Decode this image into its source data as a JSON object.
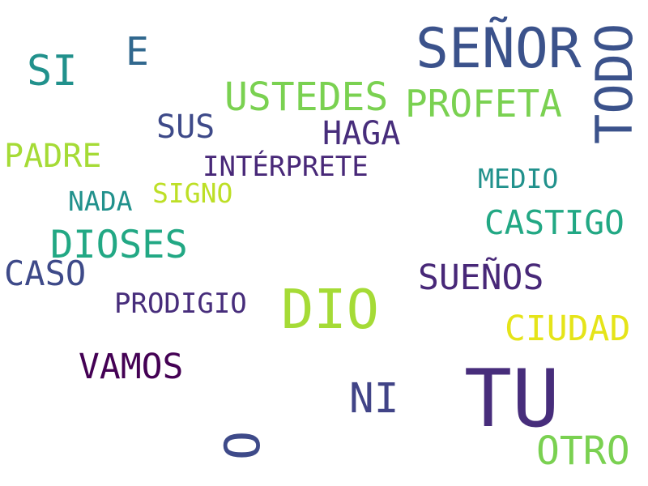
{
  "words": [
    {
      "text": "SEÑOR",
      "color": "#3b528b"
    },
    {
      "text": "TODO",
      "color": "#3b528b"
    },
    {
      "text": "E",
      "color": "#31688e"
    },
    {
      "text": "SI",
      "color": "#21918c"
    },
    {
      "text": "USTEDES",
      "color": "#7ad151"
    },
    {
      "text": "PROFETA",
      "color": "#7ad151"
    },
    {
      "text": "SUS",
      "color": "#3e4a89"
    },
    {
      "text": "HAGA",
      "color": "#472d7b"
    },
    {
      "text": "PADRE",
      "color": "#a5db36"
    },
    {
      "text": "INTÉRPRETE",
      "color": "#482878"
    },
    {
      "text": "MEDIO",
      "color": "#21918c"
    },
    {
      "text": "NADA",
      "color": "#21918c"
    },
    {
      "text": "SIGNO",
      "color": "#bddf26"
    },
    {
      "text": "CASTIGO",
      "color": "#22a884"
    },
    {
      "text": "DIOSES",
      "color": "#22a884"
    },
    {
      "text": "CASO",
      "color": "#3e4a89"
    },
    {
      "text": "SUEÑOS",
      "color": "#482878"
    },
    {
      "text": "PRODIGIO",
      "color": "#472d7b"
    },
    {
      "text": "DIO",
      "color": "#a5db36"
    },
    {
      "text": "CIUDAD",
      "color": "#e5e419"
    },
    {
      "text": "VAMOS",
      "color": "#440154"
    },
    {
      "text": "NI",
      "color": "#414487"
    },
    {
      "text": "TU",
      "color": "#472d7b"
    },
    {
      "text": "O",
      "color": "#3e4a89"
    },
    {
      "text": "OTRO",
      "color": "#7ad151"
    }
  ]
}
